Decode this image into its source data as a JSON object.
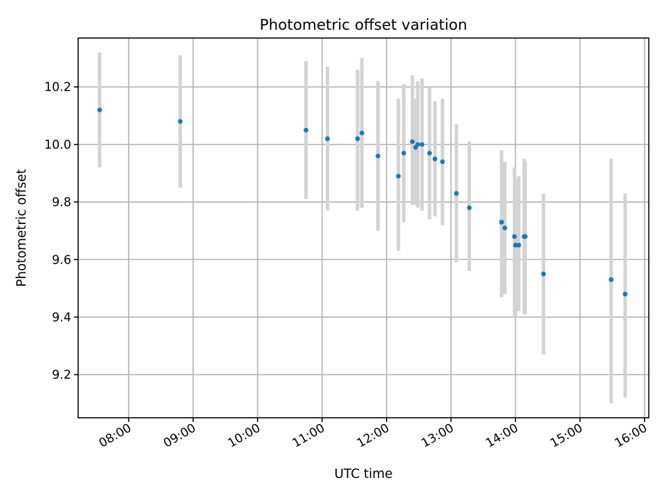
{
  "chart_data": {
    "type": "scatter",
    "title": "Photometric offset variation",
    "xlabel": "UTC time",
    "ylabel": "Photometric offset",
    "x_axis_type": "time",
    "xlim": [
      "07:13",
      "16:04"
    ],
    "ylim": [
      9.05,
      10.37
    ],
    "x_ticks": [
      "08:00",
      "09:00",
      "10:00",
      "11:00",
      "12:00",
      "13:00",
      "14:00",
      "15:00",
      "16:00"
    ],
    "y_ticks": [
      9.2,
      9.4,
      9.6,
      9.8,
      10.0,
      10.2
    ],
    "y_tick_labels": [
      "9.2",
      "9.4",
      "9.6",
      "9.8",
      "10.0",
      "10.2"
    ],
    "grid": true,
    "legend": "none",
    "colors": {
      "points": "#1f77b4",
      "error_bars": "#d3d3d3",
      "grid": "#b0b0b0"
    },
    "points": [
      {
        "x": "07:33",
        "y": 10.12,
        "ylow": 9.92,
        "yhigh": 10.32
      },
      {
        "x": "08:48",
        "y": 10.08,
        "ylow": 9.85,
        "yhigh": 10.31
      },
      {
        "x": "10:45",
        "y": 10.05,
        "ylow": 9.81,
        "yhigh": 10.29
      },
      {
        "x": "11:05",
        "y": 10.02,
        "ylow": 9.77,
        "yhigh": 10.27
      },
      {
        "x": "11:33",
        "y": 10.02,
        "ylow": 9.77,
        "yhigh": 10.26
      },
      {
        "x": "11:37",
        "y": 10.04,
        "ylow": 9.78,
        "yhigh": 10.3
      },
      {
        "x": "11:52",
        "y": 9.96,
        "ylow": 9.7,
        "yhigh": 10.22
      },
      {
        "x": "12:11",
        "y": 9.89,
        "ylow": 9.63,
        "yhigh": 10.16
      },
      {
        "x": "12:16",
        "y": 9.97,
        "ylow": 9.73,
        "yhigh": 10.21
      },
      {
        "x": "12:24",
        "y": 10.01,
        "ylow": 9.79,
        "yhigh": 10.24
      },
      {
        "x": "12:27",
        "y": 9.99,
        "ylow": 9.79,
        "yhigh": 10.16
      },
      {
        "x": "12:29",
        "y": 10.0,
        "ylow": 9.78,
        "yhigh": 10.22
      },
      {
        "x": "12:33",
        "y": 10.0,
        "ylow": 9.77,
        "yhigh": 10.23
      },
      {
        "x": "12:40",
        "y": 9.97,
        "ylow": 9.74,
        "yhigh": 10.2
      },
      {
        "x": "12:45",
        "y": 9.95,
        "ylow": 9.75,
        "yhigh": 10.15
      },
      {
        "x": "12:52",
        "y": 9.94,
        "ylow": 9.72,
        "yhigh": 10.16
      },
      {
        "x": "13:05",
        "y": 9.83,
        "ylow": 9.59,
        "yhigh": 10.07
      },
      {
        "x": "13:17",
        "y": 9.78,
        "ylow": 9.56,
        "yhigh": 10.01
      },
      {
        "x": "13:47",
        "y": 9.73,
        "ylow": 9.47,
        "yhigh": 9.98
      },
      {
        "x": "13:50",
        "y": 9.71,
        "ylow": 9.48,
        "yhigh": 9.94
      },
      {
        "x": "13:59",
        "y": 9.68,
        "ylow": 9.4,
        "yhigh": 9.92
      },
      {
        "x": "14:00",
        "y": 9.65,
        "ylow": 9.4,
        "yhigh": 9.88
      },
      {
        "x": "14:03",
        "y": 9.65,
        "ylow": 9.42,
        "yhigh": 9.89
      },
      {
        "x": "14:08",
        "y": 9.68,
        "ylow": 9.41,
        "yhigh": 9.95
      },
      {
        "x": "14:09",
        "y": 9.68,
        "ylow": 9.41,
        "yhigh": 9.94
      },
      {
        "x": "14:26",
        "y": 9.55,
        "ylow": 9.27,
        "yhigh": 9.83
      },
      {
        "x": "15:29",
        "y": 9.53,
        "ylow": 9.1,
        "yhigh": 9.95
      },
      {
        "x": "15:42",
        "y": 9.48,
        "ylow": 9.12,
        "yhigh": 9.83
      }
    ]
  }
}
